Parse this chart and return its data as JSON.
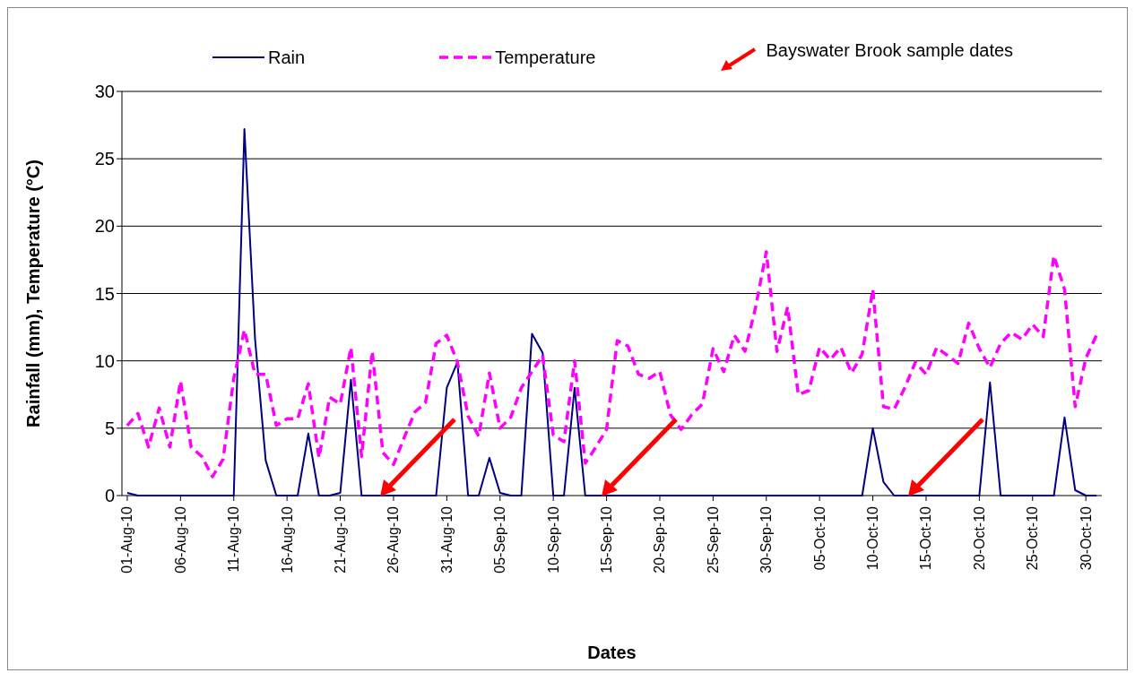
{
  "chart_data": {
    "type": "line",
    "xlabel": "Dates",
    "ylabel": "Rainfall (mm), Temperature (°C)",
    "x": [
      "--08-01",
      "--08-02",
      "--08-03",
      "--08-04",
      "--08-05",
      "--08-06",
      "--08-07",
      "--08-08",
      "--08-09",
      "--08-10",
      "--08-11",
      "--08-12",
      "--08-13",
      "--08-14",
      "--08-15",
      "--08-16",
      "--08-17",
      "--08-18",
      "--08-19",
      "--08-20",
      "--08-21",
      "--08-22",
      "--08-23",
      "--08-24",
      "--08-25",
      "--08-26",
      "--08-27",
      "--08-28",
      "--08-29",
      "--08-30",
      "--08-31",
      "--09-01",
      "--09-02",
      "--09-03",
      "--09-04",
      "--09-05",
      "--09-06",
      "--09-07",
      "--09-08",
      "--09-09",
      "--09-10",
      "--09-11",
      "--09-12",
      "--09-13",
      "--09-14",
      "--09-15",
      "--09-16",
      "--09-17",
      "--09-18",
      "--09-19",
      "--09-20",
      "--09-21",
      "--09-22",
      "--09-23",
      "--09-24",
      "--09-25",
      "--09-26",
      "--09-27",
      "--09-28",
      "--09-29",
      "--09-30",
      "--10-01",
      "--10-02",
      "--10-03",
      "--10-04",
      "--10-05",
      "--10-06",
      "--10-07",
      "--10-08",
      "--10-09",
      "--10-10",
      "--10-11",
      "--10-12",
      "--10-13",
      "--10-14",
      "--10-15",
      "--10-16",
      "--10-17",
      "--10-18",
      "--10-19",
      "--10-20",
      "--10-21",
      "--10-22",
      "--10-23",
      "--10-24",
      "--10-25",
      "--10-26",
      "--10-27",
      "--10-28",
      "--10-29",
      "--10-30",
      "--10-31"
    ],
    "series": [
      {
        "name": "Rain",
        "color": "#000080",
        "line_style": "solid",
        "values": [
          0.2,
          0,
          0,
          0,
          0,
          0,
          0,
          0,
          0,
          0,
          0,
          27.2,
          11.6,
          2.6,
          0,
          0,
          0,
          4.6,
          0,
          0,
          0.2,
          8.6,
          0,
          0,
          0,
          0,
          0,
          0,
          0,
          0,
          8.0,
          9.9,
          0,
          0,
          2.8,
          0.2,
          0,
          0,
          12.0,
          10.6,
          0,
          0,
          8.0,
          0,
          0,
          0,
          0,
          0,
          0,
          0,
          0,
          0,
          0,
          0,
          0,
          0,
          0,
          0,
          0,
          0,
          0,
          0,
          0,
          0,
          0,
          0,
          0,
          0,
          0,
          0,
          5.0,
          1.0,
          0,
          0,
          0,
          0,
          0,
          0,
          0,
          0,
          0,
          8.4,
          0,
          0,
          0,
          0,
          0,
          0,
          5.8,
          0.4,
          0,
          0
        ]
      },
      {
        "name": "Temperature",
        "color": "#ff00ff",
        "line_style": "dashed",
        "values": [
          5.2,
          6.1,
          3.6,
          6.5,
          3.6,
          8.5,
          3.6,
          2.9,
          1.4,
          2.7,
          8.7,
          12.3,
          9.0,
          9.0,
          5.2,
          5.7,
          5.7,
          8.3,
          2.8,
          7.3,
          6.8,
          11.0,
          2.9,
          10.7,
          3.2,
          2.3,
          4.3,
          6.2,
          6.9,
          11.3,
          11.9,
          9.9,
          5.9,
          4.4,
          9.1,
          5.0,
          5.8,
          8.0,
          9.2,
          10.4,
          4.5,
          4.0,
          10.0,
          2.4,
          3.6,
          4.9,
          11.5,
          11.1,
          9.0,
          8.7,
          9.2,
          6.0,
          4.9,
          6.0,
          6.8,
          10.9,
          9.2,
          11.9,
          10.7,
          14.0,
          18.1,
          10.7,
          14.0,
          7.5,
          7.8,
          11.0,
          10.1,
          11.0,
          9.1,
          10.5,
          15.3,
          6.6,
          6.4,
          8.0,
          9.9,
          9.0,
          11.0,
          10.4,
          9.8,
          12.8,
          10.9,
          9.5,
          11.3,
          12.1,
          11.6,
          12.7,
          11.8,
          17.8,
          15.3,
          6.6,
          10.2,
          11.9
        ]
      }
    ],
    "xlim": [
      "--07-31T12:00",
      "--10-31T12:00"
    ],
    "xticks": [
      {
        "value": "--08-01",
        "label": "01-Aug-10"
      },
      {
        "value": "--08-06",
        "label": "06-Aug-10"
      },
      {
        "value": "--08-11",
        "label": "11-Aug-10"
      },
      {
        "value": "--08-16",
        "label": "16-Aug-10"
      },
      {
        "value": "--08-21",
        "label": "21-Aug-10"
      },
      {
        "value": "--08-26",
        "label": "26-Aug-10"
      },
      {
        "value": "--08-31",
        "label": "31-Aug-10"
      },
      {
        "value": "--09-05",
        "label": "05-Sep-10"
      },
      {
        "value": "--09-10",
        "label": "10-Sep-10"
      },
      {
        "value": "--09-15",
        "label": "15-Sep-10"
      },
      {
        "value": "--09-20",
        "label": "20-Sep-10"
      },
      {
        "value": "--09-25",
        "label": "25-Sep-10"
      },
      {
        "value": "--09-30",
        "label": "30-Sep-10"
      },
      {
        "value": "--10-05",
        "label": "05-Oct-10"
      },
      {
        "value": "--10-10",
        "label": "10-Oct-10"
      },
      {
        "value": "--10-15",
        "label": "15-Oct-10"
      },
      {
        "value": "--10-20",
        "label": "20-Oct-10"
      },
      {
        "value": "--10-25",
        "label": "25-Oct-10"
      },
      {
        "value": "--10-30",
        "label": "30-Oct-10"
      }
    ],
    "ylim": [
      0,
      30
    ],
    "yticks": [
      0,
      5,
      10,
      15,
      20,
      25,
      30
    ],
    "grid": "y",
    "legend": "top",
    "annotations": [
      "Bayswater Brook sample dates"
    ]
  }
}
